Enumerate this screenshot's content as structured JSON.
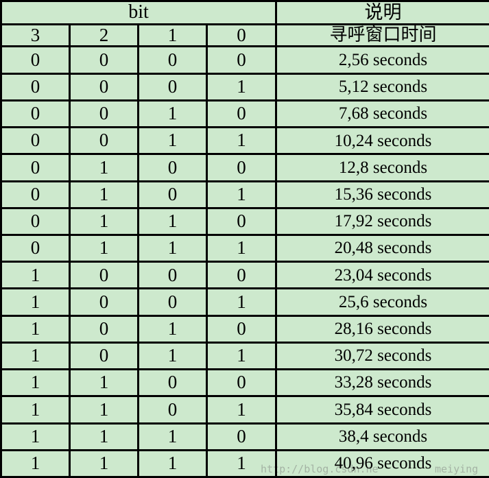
{
  "chart_data": {
    "type": "table",
    "title": "",
    "header": {
      "bit_group_label": "bit",
      "description_label": "说明"
    },
    "bit_index_row": {
      "bits": [
        "3",
        "2",
        "1",
        "0"
      ],
      "description": "寻呼窗口时间"
    },
    "rows": [
      {
        "bits": [
          "0",
          "0",
          "0",
          "0"
        ],
        "description": "2,56 seconds"
      },
      {
        "bits": [
          "0",
          "0",
          "0",
          "1"
        ],
        "description": "5,12 seconds"
      },
      {
        "bits": [
          "0",
          "0",
          "1",
          "0"
        ],
        "description": "7,68 seconds"
      },
      {
        "bits": [
          "0",
          "0",
          "1",
          "1"
        ],
        "description": "10,24 seconds"
      },
      {
        "bits": [
          "0",
          "1",
          "0",
          "0"
        ],
        "description": "12,8 seconds"
      },
      {
        "bits": [
          "0",
          "1",
          "0",
          "1"
        ],
        "description": "15,36 seconds"
      },
      {
        "bits": [
          "0",
          "1",
          "1",
          "0"
        ],
        "description": "17,92 seconds"
      },
      {
        "bits": [
          "0",
          "1",
          "1",
          "1"
        ],
        "description": "20,48 seconds"
      },
      {
        "bits": [
          "1",
          "0",
          "0",
          "0"
        ],
        "description": "23,04 seconds"
      },
      {
        "bits": [
          "1",
          "0",
          "0",
          "1"
        ],
        "description": "25,6 seconds"
      },
      {
        "bits": [
          "1",
          "0",
          "1",
          "0"
        ],
        "description": "28,16 seconds"
      },
      {
        "bits": [
          "1",
          "0",
          "1",
          "1"
        ],
        "description": "30,72 seconds"
      },
      {
        "bits": [
          "1",
          "1",
          "0",
          "0"
        ],
        "description": "33,28 seconds"
      },
      {
        "bits": [
          "1",
          "1",
          "0",
          "1"
        ],
        "description": "35,84 seconds"
      },
      {
        "bits": [
          "1",
          "1",
          "1",
          "0"
        ],
        "description": "38,4 seconds"
      },
      {
        "bits": [
          "1",
          "1",
          "1",
          "1"
        ],
        "description": "40,96 seconds"
      }
    ]
  },
  "watermark": {
    "left_fragment": "http://blog.csdn.ne",
    "right_fragment": "meiying"
  },
  "colors": {
    "background": "#cde9cd",
    "border": "#000000",
    "text": "#000000",
    "watermark": "#97a297"
  }
}
